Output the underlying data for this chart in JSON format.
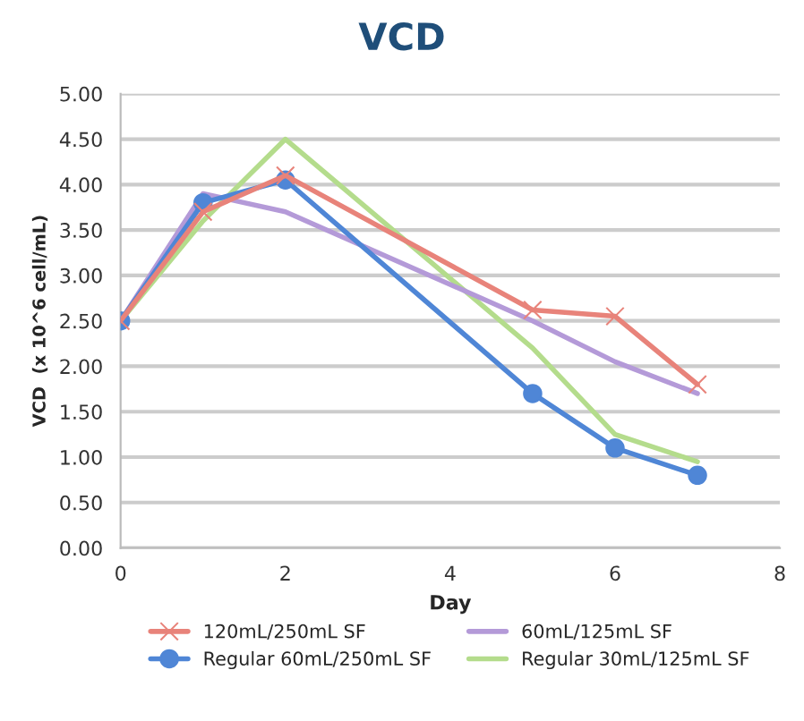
{
  "chart_data": {
    "type": "line",
    "title": "VCD",
    "xlabel": "Day",
    "ylabel": "VCD  (x 10^6 cell/mL)",
    "x": [
      0,
      1,
      2,
      5,
      6,
      7
    ],
    "series": [
      {
        "name": "120mL/250mL SF",
        "color": "#e8837a",
        "marker": "cross",
        "values": [
          2.5,
          3.7,
          4.1,
          2.62,
          2.55,
          1.8
        ]
      },
      {
        "name": "Regular 60mL/250mL SF",
        "color": "#4f86d6",
        "marker": "circle",
        "values": [
          2.5,
          3.8,
          4.05,
          1.7,
          1.1,
          0.8
        ]
      },
      {
        "name": "60mL/125mL SF",
        "color": "#b49ad8",
        "marker": "none",
        "values": [
          2.5,
          3.9,
          3.7,
          2.5,
          2.05,
          1.7
        ]
      },
      {
        "name": "Regular 30mL/125mL SF",
        "color": "#b4dc8c",
        "marker": "none",
        "values": [
          2.5,
          3.6,
          4.5,
          2.2,
          1.25,
          0.95
        ]
      }
    ],
    "xlim": [
      0,
      8
    ],
    "xticks": [
      0,
      2,
      4,
      6,
      8
    ],
    "ylim": [
      0,
      5
    ],
    "yticks": [
      {
        "value": 0,
        "label": "0.00"
      },
      {
        "value": 0.5,
        "label": "0.50"
      },
      {
        "value": 1,
        "label": "1.00"
      },
      {
        "value": 1.5,
        "label": "1.50"
      },
      {
        "value": 2,
        "label": "2.00"
      },
      {
        "value": 2.5,
        "label": "2.50"
      },
      {
        "value": 3,
        "label": "3.00"
      },
      {
        "value": 3.5,
        "label": "3.50"
      },
      {
        "value": 4,
        "label": "4.00"
      },
      {
        "value": 4.5,
        "label": "4.50"
      },
      {
        "value": 5,
        "label": "5.00"
      }
    ],
    "grid": "y",
    "legend": "bottom",
    "line_style": "solid"
  }
}
